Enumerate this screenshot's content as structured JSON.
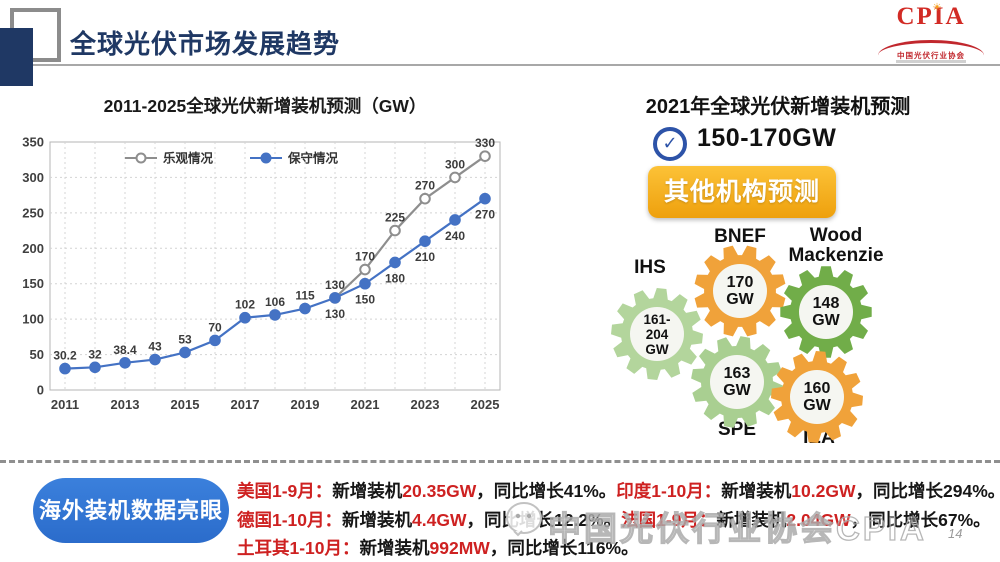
{
  "header": {
    "title": "全球光伏市场发展趋势",
    "logo": {
      "text": "CPIA",
      "subtext": "中国光伏行业协会"
    }
  },
  "chart_data": {
    "type": "line",
    "title": "2011-2025全球光伏新增装机预测（GW）",
    "x": [
      2011,
      2012,
      2013,
      2014,
      2015,
      2016,
      2017,
      2018,
      2019,
      2020,
      2021,
      2022,
      2023,
      2024,
      2025
    ],
    "x_tick_labels": [
      "2011",
      "2013",
      "2015",
      "2017",
      "2019",
      "2021",
      "2023",
      "2025"
    ],
    "ylim": [
      0,
      350
    ],
    "yticks": [
      0,
      50,
      100,
      150,
      200,
      250,
      300,
      350
    ],
    "grid": "dashed",
    "legend_position": "top-inside",
    "series": [
      {
        "name": "乐观情况",
        "marker": "open",
        "color": "#8e8e8e",
        "x": [
          2020,
          2021,
          2022,
          2023,
          2024,
          2025
        ],
        "values": [
          130,
          170,
          225,
          270,
          300,
          330
        ]
      },
      {
        "name": "保守情况",
        "marker": "filled",
        "color": "#4472c4",
        "x": [
          2011,
          2012,
          2013,
          2014,
          2015,
          2016,
          2017,
          2018,
          2019,
          2020,
          2021,
          2022,
          2023,
          2024,
          2025
        ],
        "values": [
          30.2,
          32,
          38.4,
          43,
          53,
          70,
          102,
          106,
          115,
          130,
          150,
          180,
          210,
          240,
          270
        ]
      }
    ]
  },
  "forecast": {
    "title": "2021年全球光伏新增装机预测",
    "range": "150-170GW",
    "check_glyph": "✓",
    "button_label": "其他机构预测",
    "agencies": [
      {
        "name": "IHS",
        "color": "#b3d59c",
        "value_lines": [
          "161-",
          "204",
          "GW"
        ]
      },
      {
        "name": "BNEF",
        "color": "#f0a23a",
        "value_lines": [
          "170",
          "GW"
        ]
      },
      {
        "name": "Wood Mackenzie",
        "color": "#71ad49",
        "value_lines": [
          "148",
          "GW"
        ]
      },
      {
        "name": "SPE",
        "color": "#a9cf91",
        "value_lines": [
          "163",
          "GW"
        ]
      },
      {
        "name": "IEA",
        "color": "#f0a23a",
        "value_lines": [
          "160",
          "GW"
        ]
      }
    ]
  },
  "highlight": {
    "badge": "海外装机数据亮眼",
    "lines": [
      [
        {
          "t": "美国1-9月：",
          "r": 1
        },
        {
          "t": "新增装机"
        },
        {
          "t": "20.35GW",
          "r": 1
        },
        {
          "t": "，同比增长41%。"
        },
        {
          "t": "印度1-10月：",
          "r": 1
        },
        {
          "t": "新增装机"
        },
        {
          "t": "10.2GW",
          "r": 1
        },
        {
          "t": "，同比增长294%。"
        }
      ],
      [
        {
          "t": "德国1-10月：",
          "r": 1
        },
        {
          "t": "新增装机"
        },
        {
          "t": "4.4GW",
          "r": 1
        },
        {
          "t": "，同比增长12.2%。"
        },
        {
          "t": "法国1-9月：",
          "r": 1
        },
        {
          "t": "新增装机"
        },
        {
          "t": "2.04GW",
          "r": 1
        },
        {
          "t": "，同比增长67%。"
        }
      ],
      [
        {
          "t": "土耳其1-10月：",
          "r": 1
        },
        {
          "t": "新增装机"
        },
        {
          "t": "992MW",
          "r": 1
        },
        {
          "t": "，同比增长116%。"
        }
      ]
    ]
  },
  "watermark": {
    "text": "中国光伏行业协会CPIA"
  },
  "page_number": "14"
}
